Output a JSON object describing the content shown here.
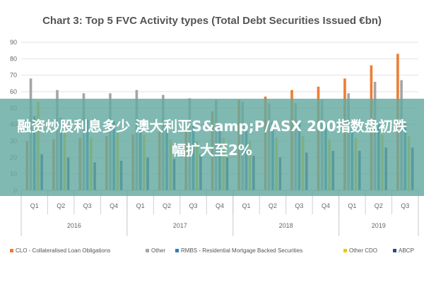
{
  "chart_data": {
    "type": "bar",
    "title": "Chart 3: Top 5 FVC Activity types (Total Debt Securities Issued €bn)",
    "ylim": [
      0,
      90
    ],
    "yticks": [
      0,
      10,
      20,
      30,
      40,
      50,
      60,
      70,
      80,
      90
    ],
    "grid": true,
    "legend_position": "bottom",
    "categories": [
      "Q1",
      "Q2",
      "Q3",
      "Q4",
      "Q1",
      "Q2",
      "Q3",
      "Q4",
      "Q1",
      "Q2",
      "Q3",
      "Q4",
      "Q1",
      "Q2",
      "Q3"
    ],
    "years": [
      {
        "label": "2016",
        "span": 4
      },
      {
        "label": "2017",
        "span": 4
      },
      {
        "label": "2018",
        "span": 4
      },
      {
        "label": "2019",
        "span": 3
      }
    ],
    "series": [
      {
        "name": "CLO - Collateralised Loan Obligations",
        "color": "#ee7d31",
        "values": [
          30,
          31,
          32,
          33,
          34,
          36,
          40,
          48,
          55,
          57,
          61,
          63,
          68,
          76,
          83
        ]
      },
      {
        "name": "Other",
        "color": "#a5a5a5",
        "values": [
          68,
          61,
          59,
          59,
          61,
          58,
          56,
          55,
          54,
          53,
          53,
          55,
          59,
          66,
          67
        ]
      },
      {
        "name": "RMBS - Residential Mortgage Backed Securities",
        "color": "#2e7fbf",
        "values": [
          45,
          44,
          43,
          42,
          41,
          40,
          39,
          38,
          40,
          42,
          41,
          40,
          40,
          41,
          41
        ]
      },
      {
        "name": "Other CDO",
        "color": "#f2c500",
        "values": [
          54,
          40,
          32,
          35,
          34,
          31,
          30,
          32,
          30,
          32,
          33,
          31,
          32,
          34,
          33
        ]
      },
      {
        "name": "ABCP",
        "color": "#1f4f8f",
        "values": [
          22,
          20,
          17,
          18,
          20,
          19,
          22,
          20,
          21,
          20,
          23,
          24,
          24,
          26,
          26
        ]
      }
    ]
  },
  "overlay": {
    "text": "融资炒股利息多少 澳大利亚S&amp;P/ASX 200指数盘初跌幅扩大至2%"
  }
}
